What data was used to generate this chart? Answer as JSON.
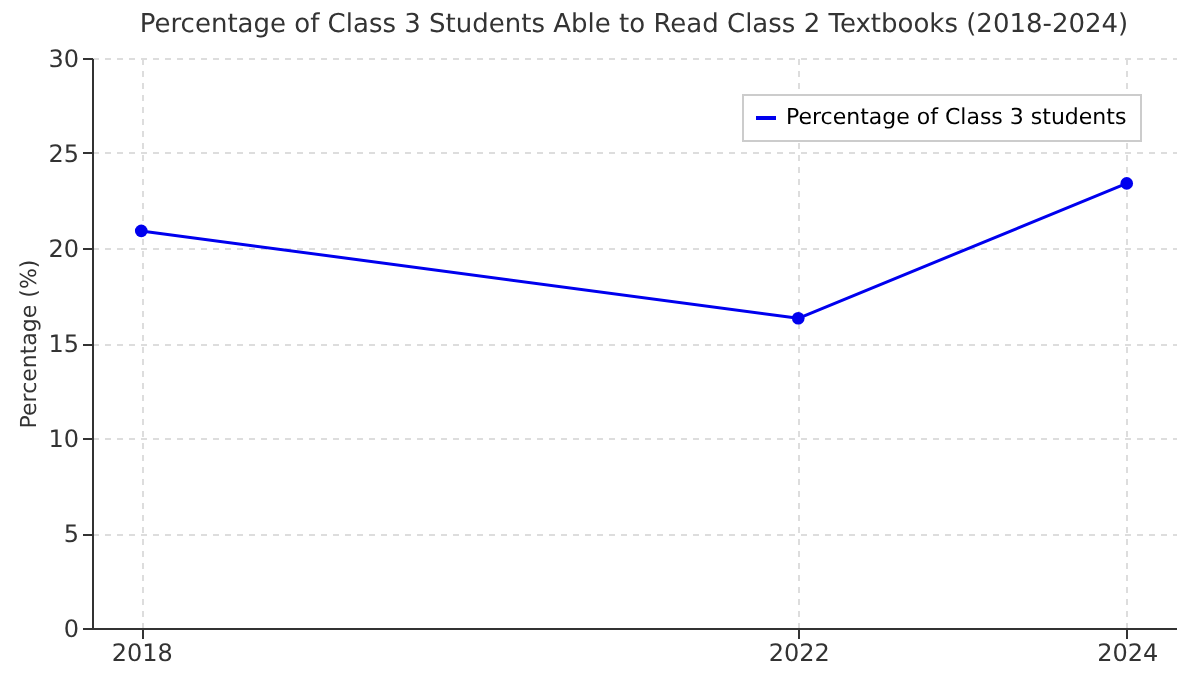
{
  "chart_data": {
    "type": "line",
    "title": "Percentage of Class 3 Students Able to Read Class 2 Textbooks (2018-2024)",
    "ylabel": "Percentage (%)",
    "x": [
      2018,
      2022,
      2024
    ],
    "series": [
      {
        "name": "Percentage of Class 3 students",
        "color": "#0000ee",
        "values": [
          20.9,
          16.3,
          23.4
        ]
      }
    ],
    "xlim": [
      2017.7,
      2024.3
    ],
    "xticks": [
      2018,
      2022,
      2024
    ],
    "ylim": [
      0,
      30
    ],
    "yticks": [
      0,
      5,
      10,
      15,
      20,
      25,
      30
    ],
    "grid": true,
    "legend": "top right",
    "marker": "circle",
    "line_style": "solid"
  }
}
